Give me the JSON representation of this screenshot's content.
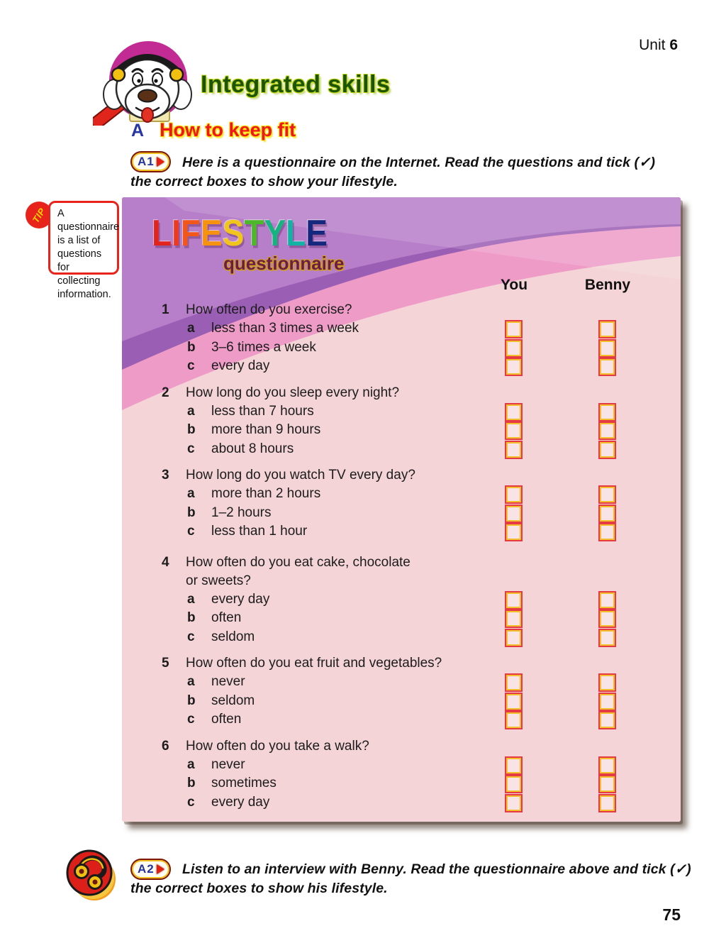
{
  "page": {
    "unit_prefix": "Unit ",
    "unit_number": "6",
    "page_number": "75"
  },
  "header": {
    "title": "Integrated skills",
    "section_letter": "A",
    "section_title": "How to keep fit"
  },
  "icons": {
    "mascot": "dog-with-headphones-logo",
    "listen": "headphones-icon",
    "badge_arrow": "play-triangle-icon",
    "tick_symbol": "✓"
  },
  "a1": {
    "badge": "A1",
    "line1": "Here is a questionnaire on the Internet. Read the questions and tick (✓)",
    "line2": "the correct boxes to show your lifestyle."
  },
  "a2": {
    "badge": "A2",
    "line1": "Listen to an interview with Benny. Read the questionnaire above and tick (✓)",
    "line2": "the correct boxes to show his lifestyle."
  },
  "tip": {
    "label": "TIP",
    "text": "A questionnaire is a list of questions for collecting information."
  },
  "questionnaire": {
    "title_letters": [
      {
        "ch": "L",
        "color": "#e3241d"
      },
      {
        "ch": "I",
        "color": "#ed3a1c"
      },
      {
        "ch": "F",
        "color": "#f1571a"
      },
      {
        "ch": "E",
        "color": "#f6920e"
      },
      {
        "ch": "S",
        "color": "#f2c51c"
      },
      {
        "ch": "T",
        "color": "#4db82a"
      },
      {
        "ch": "Y",
        "color": "#14b47e"
      },
      {
        "ch": "L",
        "color": "#12b3a4"
      },
      {
        "ch": "E",
        "color": "#16277e"
      }
    ],
    "subtitle": "questionnaire",
    "columns": [
      "You",
      "Benny"
    ],
    "questions": [
      {
        "num": "1",
        "line1": "How often do you exercise?",
        "line2": "",
        "options": [
          {
            "letter": "a",
            "label": "less than 3 times a week"
          },
          {
            "letter": "b",
            "label": "3–6 times a week"
          },
          {
            "letter": "c",
            "label": "every day"
          }
        ]
      },
      {
        "num": "2",
        "line1": "How long do you sleep every night?",
        "line2": "",
        "options": [
          {
            "letter": "a",
            "label": "less than 7 hours"
          },
          {
            "letter": "b",
            "label": "more than 9 hours"
          },
          {
            "letter": "c",
            "label": "about 8 hours"
          }
        ]
      },
      {
        "num": "3",
        "line1": "How long do you watch TV every day?",
        "line2": "",
        "options": [
          {
            "letter": "a",
            "label": "more than 2 hours"
          },
          {
            "letter": "b",
            "label": "1–2 hours"
          },
          {
            "letter": "c",
            "label": "less than 1 hour"
          }
        ]
      },
      {
        "num": "4",
        "line1": "How often do you eat cake, chocolate",
        "line2": "or sweets?",
        "options": [
          {
            "letter": "a",
            "label": "every day"
          },
          {
            "letter": "b",
            "label": "often"
          },
          {
            "letter": "c",
            "label": "seldom"
          }
        ]
      },
      {
        "num": "5",
        "line1": "How often do you eat fruit and vegetables?",
        "line2": "",
        "options": [
          {
            "letter": "a",
            "label": "never"
          },
          {
            "letter": "b",
            "label": "seldom"
          },
          {
            "letter": "c",
            "label": "often"
          }
        ]
      },
      {
        "num": "6",
        "line1": "How often do you take a walk?",
        "line2": "",
        "options": [
          {
            "letter": "a",
            "label": "never"
          },
          {
            "letter": "b",
            "label": "sometimes"
          },
          {
            "letter": "c",
            "label": "every day"
          }
        ]
      }
    ]
  },
  "colors": {
    "panel_body": "#f4d4d7",
    "panel_purple": "#b77ec9",
    "panel_purple_dark": "#9a5fb4",
    "panel_pink_band": "#ee9cc7",
    "checkbox_red": "#e63946",
    "checkbox_gold": "#f3c02c",
    "heading_green": "#1b5404",
    "section_red": "#f0161f",
    "badge_blue": "#2336a0"
  }
}
